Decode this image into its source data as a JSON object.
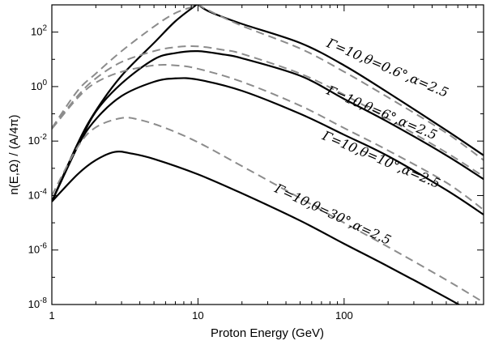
{
  "chart_data": {
    "type": "line",
    "title": "",
    "xlabel": "Proton Energy (GeV)",
    "ylabel": "n(E,Ω) / (A/4π)",
    "xscale": "log",
    "yscale": "log",
    "xlim": [
      1,
      900
    ],
    "ylim": [
      1e-08,
      1000
    ],
    "x_ticks": [
      {
        "value": 1,
        "label": "1"
      },
      {
        "value": 10,
        "label": "10"
      },
      {
        "value": 100,
        "label": "100"
      }
    ],
    "y_ticks": [
      {
        "value": 1e-08,
        "base": "10",
        "exp": "-8"
      },
      {
        "value": 1e-06,
        "base": "10",
        "exp": "-6"
      },
      {
        "value": 0.0001,
        "base": "10",
        "exp": "-4"
      },
      {
        "value": 0.01,
        "base": "10",
        "exp": "-2"
      },
      {
        "value": 1,
        "base": "10",
        "exp": "0"
      },
      {
        "value": 100,
        "base": "10",
        "exp": "2"
      }
    ],
    "grid": false,
    "legend": "none",
    "series": [
      {
        "style": "solid",
        "points": [
          [
            1,
            6e-05
          ],
          [
            1.5,
            0.008
          ],
          [
            2,
            0.13
          ],
          [
            3,
            2.5
          ],
          [
            5,
            40
          ],
          [
            7,
            250
          ],
          [
            9.5,
            900
          ],
          [
            10,
            1000
          ],
          [
            12,
            560
          ],
          [
            20,
            200
          ],
          [
            50,
            40
          ],
          [
            100,
            6
          ],
          [
            200,
            0.6
          ],
          [
            500,
            0.025
          ],
          [
            900,
            0.003
          ]
        ]
      },
      {
        "style": "dashed",
        "points": [
          [
            1,
            0.03
          ],
          [
            1.5,
            0.7
          ],
          [
            2,
            3
          ],
          [
            3,
            20
          ],
          [
            5,
            160
          ],
          [
            7,
            500
          ],
          [
            9.5,
            900
          ],
          [
            10,
            1000
          ],
          [
            12,
            600
          ],
          [
            20,
            170
          ],
          [
            50,
            25
          ],
          [
            100,
            3.5
          ],
          [
            200,
            0.4
          ],
          [
            500,
            0.02
          ],
          [
            900,
            0.002
          ]
        ]
      },
      {
        "style": "solid",
        "points": [
          [
            1,
            6e-05
          ],
          [
            1.5,
            0.0063
          ],
          [
            2,
            0.12
          ],
          [
            3,
            1.3
          ],
          [
            5,
            10
          ],
          [
            7,
            17
          ],
          [
            10,
            20
          ],
          [
            15,
            15
          ],
          [
            20,
            11
          ],
          [
            50,
            2.5
          ],
          [
            100,
            0.35
          ],
          [
            200,
            0.05
          ],
          [
            500,
            0.003
          ],
          [
            900,
            0.0004
          ]
        ]
      },
      {
        "style": "dashed",
        "points": [
          [
            1,
            0.03
          ],
          [
            1.5,
            0.45
          ],
          [
            2,
            2
          ],
          [
            3,
            8
          ],
          [
            5,
            20
          ],
          [
            7,
            28
          ],
          [
            10,
            30
          ],
          [
            15,
            22
          ],
          [
            20,
            16
          ],
          [
            50,
            3
          ],
          [
            100,
            0.5
          ],
          [
            200,
            0.065
          ],
          [
            500,
            0.0038
          ],
          [
            900,
            0.0005
          ]
        ]
      },
      {
        "style": "solid",
        "points": [
          [
            1,
            6e-05
          ],
          [
            1.5,
            0.0063
          ],
          [
            2,
            0.063
          ],
          [
            3,
            0.45
          ],
          [
            5,
            1.5
          ],
          [
            7,
            2
          ],
          [
            10,
            1.8
          ],
          [
            20,
            0.7
          ],
          [
            50,
            0.1
          ],
          [
            100,
            0.017
          ],
          [
            200,
            0.0028
          ],
          [
            500,
            0.00016
          ],
          [
            900,
            2e-05
          ]
        ]
      },
      {
        "style": "dashed",
        "points": [
          [
            1,
            0.028
          ],
          [
            1.5,
            0.38
          ],
          [
            2,
            1.4
          ],
          [
            3,
            3.5
          ],
          [
            5,
            6
          ],
          [
            7,
            6
          ],
          [
            10,
            4.5
          ],
          [
            20,
            1.5
          ],
          [
            50,
            0.2
          ],
          [
            100,
            0.03
          ],
          [
            200,
            0.0045
          ],
          [
            500,
            0.0003
          ],
          [
            900,
            3e-05
          ]
        ]
      },
      {
        "style": "dashed",
        "points": [
          [
            1,
            0.0001
          ],
          [
            1.5,
            0.006
          ],
          [
            2,
            0.032
          ],
          [
            3,
            0.07
          ],
          [
            4,
            0.06
          ],
          [
            6,
            0.03
          ],
          [
            10,
            0.009
          ],
          [
            20,
            0.0012
          ],
          [
            50,
            8e-05
          ],
          [
            100,
            1e-05
          ],
          [
            200,
            1.3e-06
          ],
          [
            500,
            8e-08
          ],
          [
            900,
            1.2e-08
          ]
        ]
      },
      {
        "style": "solid",
        "points": [
          [
            1,
            6e-05
          ],
          [
            1.5,
            0.0006
          ],
          [
            2,
            0.002
          ],
          [
            2.7,
            0.004
          ],
          [
            3.5,
            0.0035
          ],
          [
            5,
            0.0022
          ],
          [
            10,
            0.0006
          ],
          [
            20,
            0.00012
          ],
          [
            50,
            1.2e-05
          ],
          [
            100,
            1.7e-06
          ],
          [
            200,
            2.5e-07
          ],
          [
            500,
            1.8e-08
          ],
          [
            900,
            3e-09
          ]
        ]
      }
    ],
    "annotations": [
      {
        "text": "Γ=10,θ=0.6°,α=2.5",
        "x": 75,
        "y": 30,
        "rotate": 23
      },
      {
        "text": "Γ=10,θ=6°,α=2.5",
        "x": 75,
        "y": 0.55,
        "rotate": 23
      },
      {
        "text": "Γ=10,θ=10°,α=2.5",
        "x": 70,
        "y": 0.012,
        "rotate": 23
      },
      {
        "text": "Γ=10,θ=30°,α=2.5",
        "x": 33,
        "y": 0.00014,
        "rotate": 25
      }
    ]
  }
}
